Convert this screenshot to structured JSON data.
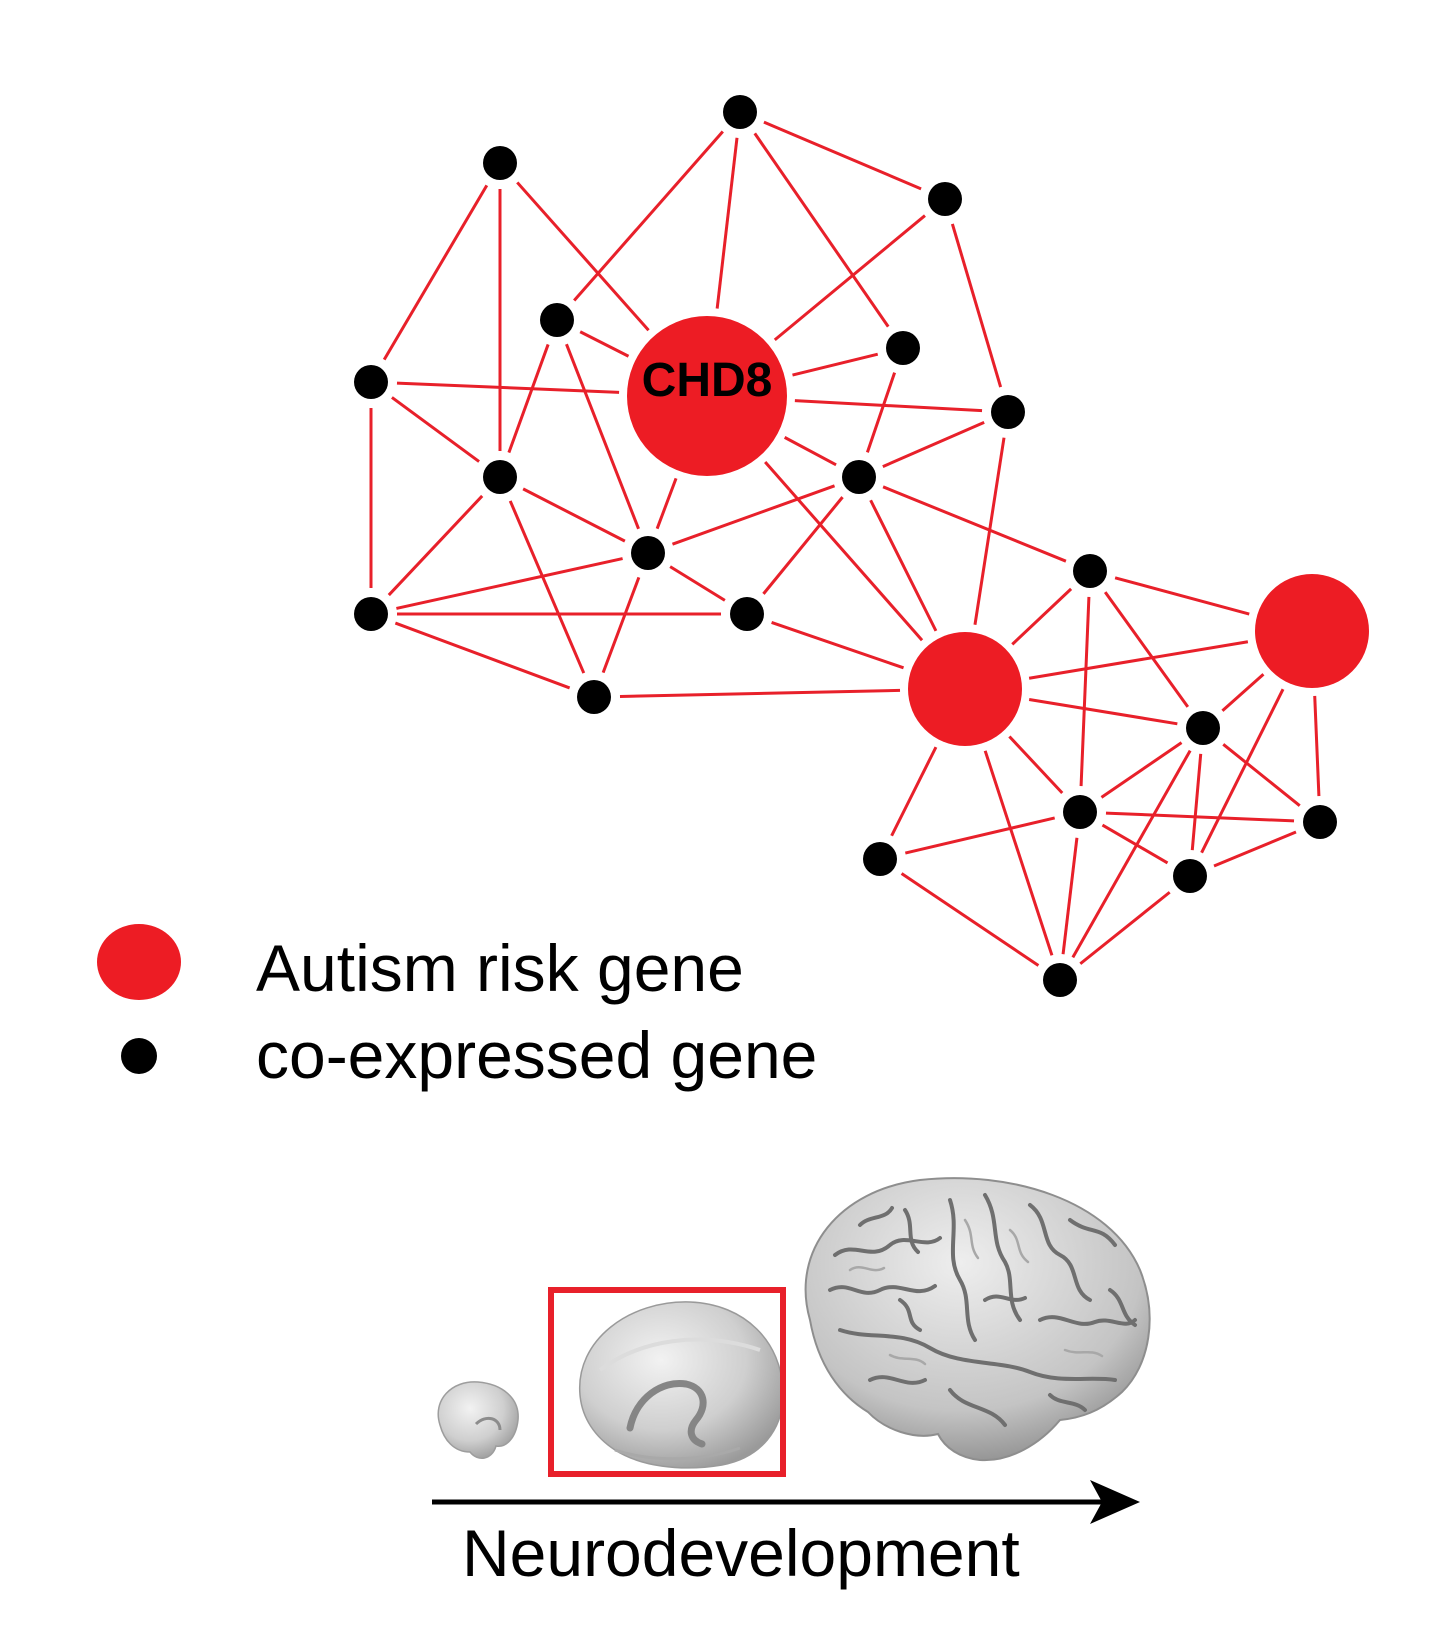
{
  "network": {
    "hub_label": "CHD8",
    "edge_color": "#e8202a",
    "risk_gene_color": "#ed1c24",
    "coexpressed_gene_color": "#000000"
  },
  "legend": {
    "risk_gene_label": "Autism risk gene",
    "coexpressed_gene_label": "co-expressed gene"
  },
  "timeline": {
    "axis_label": "Neurodevelopment",
    "stages": [
      "early-brain",
      "mid-fetal-brain",
      "adult-brain"
    ],
    "highlighted_stage": "mid-fetal-brain",
    "highlight_color": "#e8202a"
  }
}
